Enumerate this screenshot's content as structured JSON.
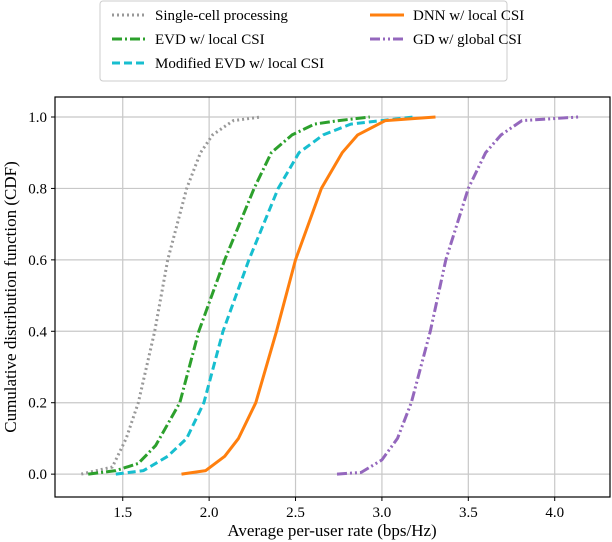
{
  "chart_data": {
    "type": "line",
    "title": "",
    "xlabel": "Average per-user rate (bps/Hz)",
    "ylabel": "Cumulative distribution function (CDF)",
    "xlim": [
      1.108,
      4.32
    ],
    "ylim": [
      -0.064,
      1.056
    ],
    "xticks": [
      1.5,
      2.0,
      2.5,
      3.0,
      3.5,
      4.0
    ],
    "xtick_labels": [
      "1.5",
      "2.0",
      "2.5",
      "3.0",
      "3.5",
      "4.0"
    ],
    "yticks": [
      0.0,
      0.2,
      0.4,
      0.6,
      0.8,
      1.0
    ],
    "ytick_labels": [
      "0.0",
      "0.2",
      "0.4",
      "0.6",
      "0.8",
      "1.0"
    ],
    "grid": true,
    "legend_placement": "top-center outside",
    "series": [
      {
        "name": "Single-cell processing",
        "color": "#999999",
        "linestyle": "dotted",
        "x": [
          1.26,
          1.44,
          1.52,
          1.59,
          1.685,
          1.76,
          1.87,
          1.95,
          2.02,
          2.14,
          2.3
        ],
        "y": [
          0,
          0.02,
          0.1,
          0.2,
          0.4,
          0.6,
          0.8,
          0.9,
          0.95,
          0.99,
          1.0
        ]
      },
      {
        "name": "EVD w/ local CSI",
        "color": "#2ca02c",
        "linestyle": "dashdot",
        "x": [
          1.3,
          1.46,
          1.59,
          1.69,
          1.83,
          1.94,
          2.09,
          2.26,
          2.36,
          2.48,
          2.61,
          2.75,
          2.93
        ],
        "y": [
          0,
          0.01,
          0.03,
          0.08,
          0.2,
          0.4,
          0.6,
          0.8,
          0.9,
          0.95,
          0.98,
          0.99,
          1.0
        ]
      },
      {
        "name": "Modified EVD w/ local CSI",
        "color": "#17becf",
        "linestyle": "dashed",
        "x": [
          1.46,
          1.62,
          1.76,
          1.87,
          1.97,
          2.08,
          2.23,
          2.4,
          2.52,
          2.66,
          2.82,
          3.18
        ],
        "y": [
          0,
          0.01,
          0.05,
          0.1,
          0.2,
          0.4,
          0.6,
          0.8,
          0.9,
          0.95,
          0.98,
          1.0
        ]
      },
      {
        "name": "DNN w/ local CSI",
        "color": "#ff7f0e",
        "linestyle": "solid",
        "x": [
          1.84,
          1.98,
          2.09,
          2.17,
          2.27,
          2.39,
          2.5,
          2.65,
          2.77,
          2.86,
          3.02,
          3.31
        ],
        "y": [
          0,
          0.01,
          0.05,
          0.1,
          0.2,
          0.4,
          0.6,
          0.8,
          0.9,
          0.95,
          0.99,
          1.0
        ]
      },
      {
        "name": "GD w/ global CSI",
        "color": "#9467bd",
        "linestyle": "dashdotdot",
        "x": [
          2.74,
          2.88,
          3.0,
          3.09,
          3.17,
          3.28,
          3.37,
          3.5,
          3.6,
          3.69,
          3.81,
          4.14
        ],
        "y": [
          0,
          0.005,
          0.04,
          0.1,
          0.2,
          0.4,
          0.6,
          0.8,
          0.9,
          0.95,
          0.99,
          1.0
        ]
      }
    ]
  }
}
